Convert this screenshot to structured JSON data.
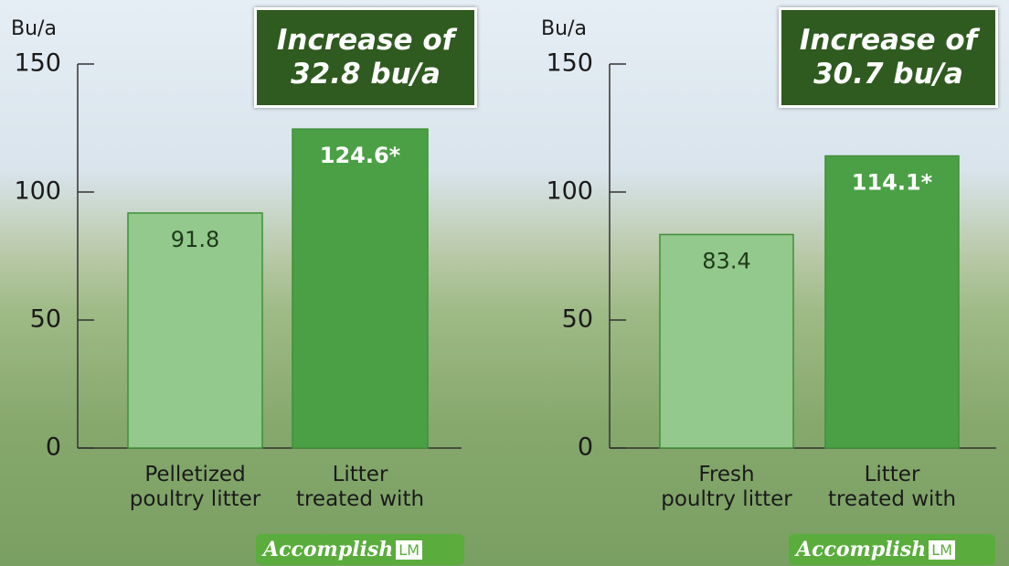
{
  "chart_data": [
    {
      "type": "bar",
      "y_label": "Bu/a",
      "annotation": "Increase of\n32.8 bu/a",
      "categories": [
        "Pelletized\npoultry litter",
        "Litter\ntreated with"
      ],
      "values": [
        91.8,
        124.6
      ],
      "value_labels": [
        "91.8",
        "124.6*"
      ],
      "colors": [
        "#93c98c",
        "#4ba046"
      ],
      "ylim": [
        0,
        150
      ],
      "yticks": [
        0,
        50,
        100,
        150
      ],
      "logo": "Accomplish",
      "logo_suffix": "LM"
    },
    {
      "type": "bar",
      "y_label": "Bu/a",
      "annotation": "Increase of\n30.7 bu/a",
      "categories": [
        "Fresh\npoultry litter",
        "Litter\ntreated with"
      ],
      "values": [
        83.4,
        114.1
      ],
      "value_labels": [
        "83.4",
        "114.1*"
      ],
      "colors": [
        "#93c98c",
        "#4ba046"
      ],
      "ylim": [
        0,
        150
      ],
      "yticks": [
        0,
        50,
        100,
        150
      ],
      "logo": "Accomplish",
      "logo_suffix": "LM"
    }
  ]
}
